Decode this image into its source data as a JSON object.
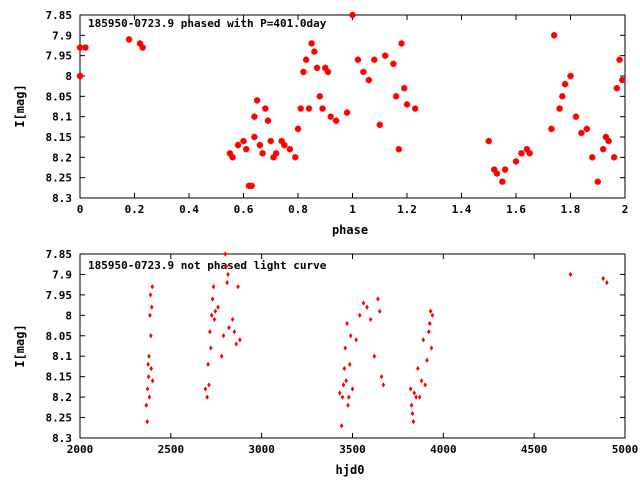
{
  "chart_data": [
    {
      "type": "scatter",
      "title": "185950-0723.9 phased with P=401.0day",
      "xlabel": "phase",
      "ylabel": "I[mag]",
      "xlim": [
        0,
        2
      ],
      "ylim": [
        7.85,
        8.3
      ],
      "y_inverted": true,
      "grid": false,
      "marker_color": "#ff0000",
      "xticks": [
        "0",
        "0.2",
        "0.4",
        "0.6",
        "0.8",
        "1",
        "1.2",
        "1.4",
        "1.6",
        "1.8",
        "2"
      ],
      "yticks": [
        "7.85",
        "7.9",
        "7.95",
        "8",
        "8.05",
        "8.1",
        "8.15",
        "8.2",
        "8.25",
        "8.3"
      ],
      "series": [
        {
          "x": [
            0.0,
            0.0,
            0.02,
            0.18,
            0.22,
            0.23,
            0.55,
            0.56,
            0.58,
            0.6,
            0.61,
            0.62,
            0.63,
            0.64,
            0.64,
            0.65,
            0.66,
            0.67,
            0.68,
            0.69,
            0.7,
            0.71,
            0.72,
            0.74,
            0.75,
            0.77,
            0.79,
            0.8,
            0.81,
            0.82,
            0.83,
            0.84,
            0.85,
            0.86,
            0.87,
            0.88,
            0.89,
            0.9,
            0.91,
            0.92,
            0.94,
            0.98,
            1.0,
            1.02,
            1.04,
            1.06,
            1.08,
            1.1,
            1.12,
            1.15,
            1.16,
            1.17,
            1.18,
            1.19,
            1.2,
            1.23,
            1.5,
            1.52,
            1.53,
            1.55,
            1.56,
            1.6,
            1.62,
            1.64,
            1.65,
            1.73,
            1.74,
            1.76,
            1.77,
            1.78,
            1.8,
            1.82,
            1.84,
            1.86,
            1.88,
            1.9,
            1.92,
            1.93,
            1.94,
            1.96,
            1.97,
            1.98,
            1.99
          ],
          "y": [
            7.93,
            8.0,
            7.93,
            7.91,
            7.92,
            7.93,
            8.19,
            8.2,
            8.17,
            8.16,
            8.18,
            8.27,
            8.27,
            8.1,
            8.15,
            8.06,
            8.17,
            8.19,
            8.08,
            8.11,
            8.16,
            8.2,
            8.19,
            8.16,
            8.17,
            8.18,
            8.2,
            8.13,
            8.08,
            7.99,
            7.96,
            8.08,
            7.92,
            7.94,
            7.98,
            8.05,
            8.08,
            7.98,
            7.99,
            8.1,
            8.11,
            8.09,
            7.85,
            7.96,
            7.99,
            8.01,
            7.96,
            8.12,
            7.95,
            7.97,
            8.05,
            8.18,
            7.92,
            8.03,
            8.07,
            8.08,
            8.16,
            8.23,
            8.24,
            8.26,
            8.23,
            8.21,
            8.19,
            8.18,
            8.19,
            8.13,
            7.9,
            8.08,
            8.05,
            8.02,
            8.0,
            8.1,
            8.14,
            8.13,
            8.2,
            8.26,
            8.18,
            8.15,
            8.16,
            8.2,
            8.03,
            7.96,
            8.01
          ]
        }
      ]
    },
    {
      "type": "scatter",
      "title": "185950-0723.9 not phased light curve",
      "xlabel": "hjd0",
      "ylabel": "I[mag]",
      "xlim": [
        2000,
        5000
      ],
      "ylim": [
        7.85,
        8.3
      ],
      "y_inverted": true,
      "grid": false,
      "marker_color": "#ff0000",
      "xticks": [
        "2000",
        "2500",
        "3000",
        "3500",
        "4000",
        "4500",
        "5000"
      ],
      "yticks": [
        "7.85",
        "7.9",
        "7.95",
        "8",
        "8.05",
        "8.1",
        "8.15",
        "8.2",
        "8.25",
        "8.3"
      ],
      "series": [
        {
          "x": [
            2365,
            2370,
            2372,
            2375,
            2378,
            2380,
            2382,
            2385,
            2388,
            2390,
            2392,
            2395,
            2398,
            2400,
            2690,
            2700,
            2705,
            2710,
            2715,
            2720,
            2725,
            2730,
            2735,
            2740,
            2745,
            2760,
            2780,
            2790,
            2800,
            2805,
            2810,
            2815,
            2820,
            2840,
            2850,
            2860,
            2870,
            2880,
            3430,
            3440,
            3445,
            3450,
            3455,
            3460,
            3465,
            3470,
            3475,
            3480,
            3485,
            3490,
            3500,
            3520,
            3540,
            3560,
            3580,
            3600,
            3620,
            3640,
            3650,
            3660,
            3670,
            3820,
            3825,
            3830,
            3835,
            3840,
            3850,
            3860,
            3870,
            3880,
            3890,
            3900,
            3910,
            3920,
            3925,
            3930,
            3935,
            3940,
            4700,
            4880,
            4900
          ],
          "y": [
            8.22,
            8.26,
            8.18,
            8.12,
            8.15,
            8.1,
            8.2,
            8.0,
            7.95,
            8.05,
            8.13,
            7.98,
            7.93,
            8.16,
            8.18,
            8.2,
            8.12,
            8.17,
            8.04,
            8.08,
            8.0,
            7.96,
            7.93,
            8.01,
            7.99,
            7.98,
            8.1,
            8.05,
            7.85,
            7.88,
            7.92,
            7.9,
            8.03,
            8.01,
            8.04,
            8.07,
            7.93,
            8.06,
            8.19,
            8.27,
            8.2,
            8.17,
            8.13,
            8.08,
            8.16,
            8.02,
            8.22,
            8.2,
            8.12,
            8.05,
            8.18,
            8.06,
            8.0,
            7.97,
            7.98,
            8.01,
            8.1,
            7.96,
            7.99,
            8.15,
            8.17,
            8.18,
            8.22,
            8.24,
            8.26,
            8.19,
            8.2,
            8.13,
            8.2,
            8.16,
            8.06,
            8.17,
            8.11,
            8.04,
            8.02,
            7.99,
            8.08,
            8.0,
            7.9,
            7.91,
            7.92
          ]
        }
      ]
    }
  ]
}
